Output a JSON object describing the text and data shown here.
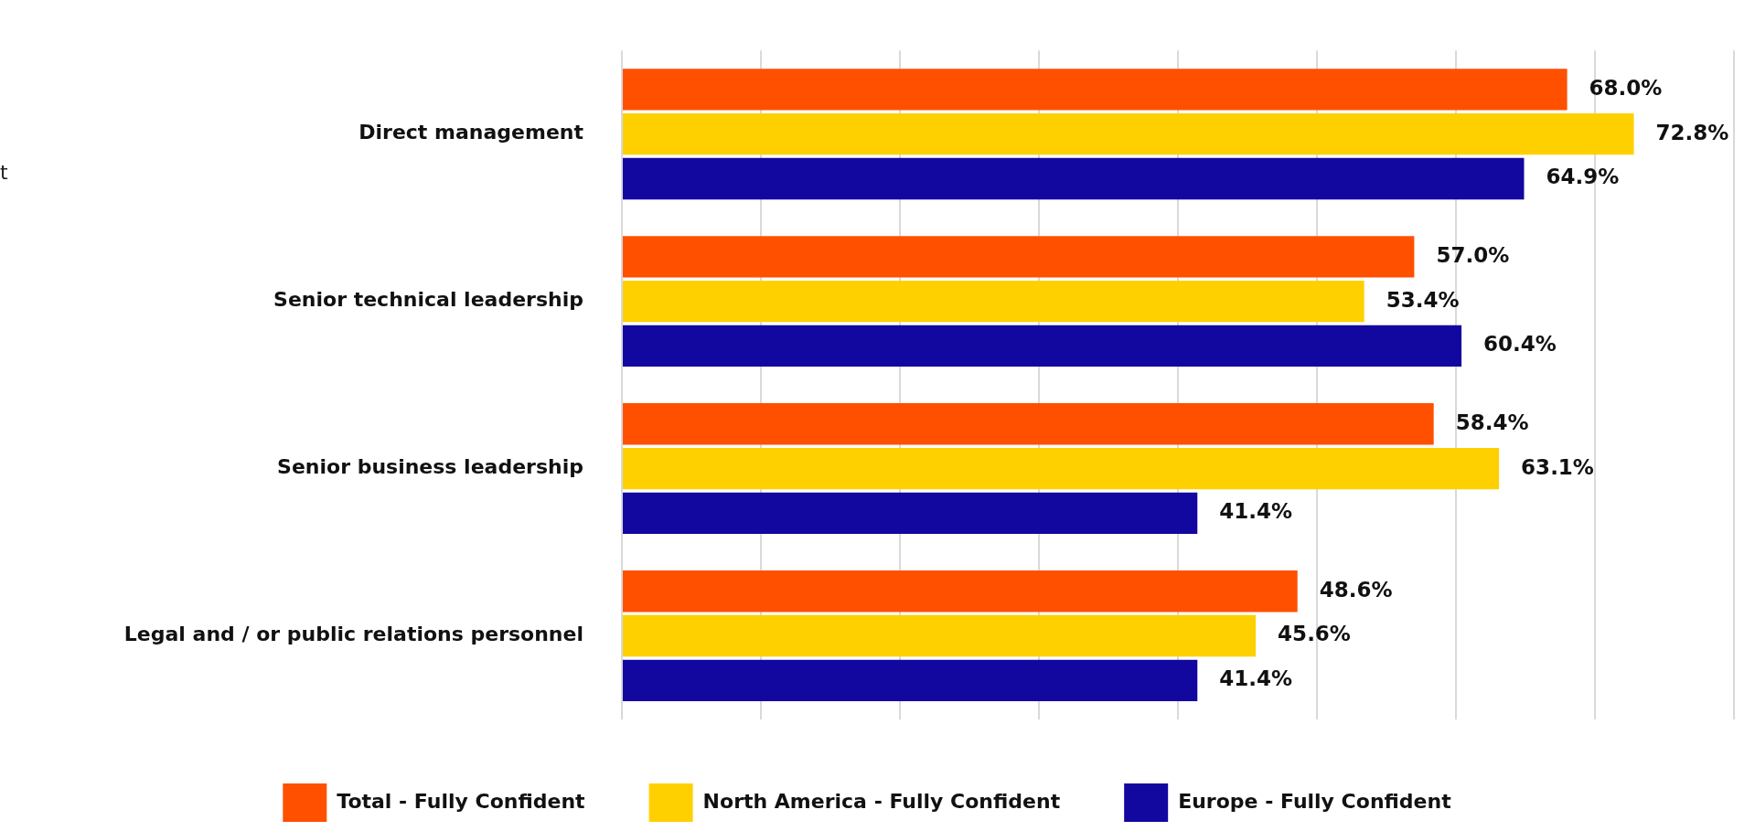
{
  "chart_data": {
    "type": "bar",
    "orientation": "horizontal",
    "categories": [
      "Direct management",
      "Senior technical leadership",
      "Senior business leadership",
      "Legal and / or public relations personnel"
    ],
    "series": [
      {
        "name": "Total - Fully Confident",
        "color": "#ff5000",
        "values": [
          68.0,
          57.0,
          58.4,
          48.6
        ],
        "value_labels": [
          "68.0%",
          "57.0%",
          "58.4%",
          "48.6%"
        ]
      },
      {
        "name": "North America - Fully Confident",
        "color": "#ffd000",
        "values": [
          72.8,
          53.4,
          63.1,
          45.6
        ],
        "value_labels": [
          "72.8%",
          "53.4%",
          "63.1%",
          "45.6%"
        ]
      },
      {
        "name": "Europe - Fully Confident",
        "color": "#12079f",
        "values": [
          64.9,
          60.4,
          41.4,
          41.4
        ],
        "value_labels": [
          "64.9%",
          "60.4%",
          "41.4%",
          "41.4%"
        ]
      }
    ],
    "xlim": [
      0,
      80
    ],
    "xticks": [
      {
        "value": 0,
        "label": null
      },
      {
        "value": 10,
        "label": null
      },
      {
        "value": 20,
        "label": null
      },
      {
        "value": 30,
        "label": null
      },
      {
        "value": 40,
        "label": null
      },
      {
        "value": 50,
        "label": null
      },
      {
        "value": 60,
        "label": null
      },
      {
        "value": 70,
        "label": null
      },
      {
        "value": 80,
        "label": null
      }
    ],
    "tick_labels": "y",
    "grid": "x",
    "legend": "bottom",
    "annotations": [
      "t"
    ]
  }
}
